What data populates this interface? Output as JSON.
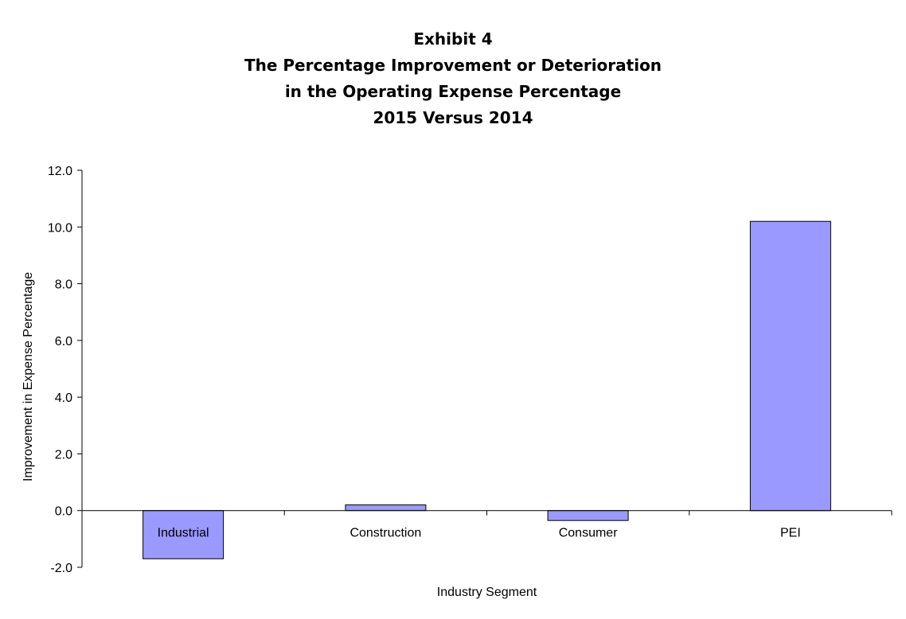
{
  "chart_data": {
    "type": "bar",
    "title": [
      "Exhibit 4",
      "The Percentage Improvement or Deterioration",
      "in the Operating Expense Percentage",
      "2015 Versus 2014"
    ],
    "xlabel": "Industry Segment",
    "ylabel": "Improvement in Expense Percentage",
    "categories": [
      "Industrial",
      "Construction",
      "Consumer",
      "PEI"
    ],
    "values": [
      -1.7,
      0.2,
      -0.35,
      10.2
    ],
    "ylim": [
      -2.0,
      12.0
    ],
    "yticks": [
      "12.0",
      "10.0",
      "8.0",
      "6.0",
      "4.0",
      "2.0",
      "0.0",
      "-2.0"
    ],
    "grid": false,
    "legend": "none",
    "bar_color": "#9999ff",
    "bar_outline_color": "#000000"
  }
}
